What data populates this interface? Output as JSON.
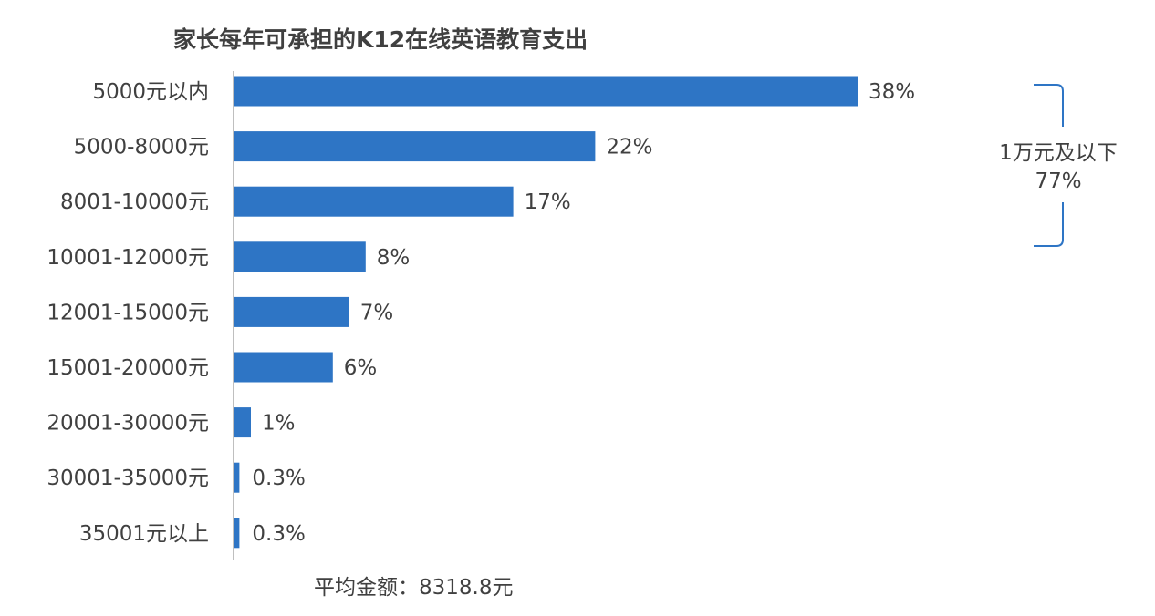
{
  "chart_data": {
    "type": "bar",
    "orientation": "horizontal",
    "title": "家长每年可承担的K12在线英语教育支出",
    "categories": [
      "5000元以内",
      "5000-8000元",
      "8001-10000元",
      "10001-12000元",
      "12001-15000元",
      "15001-20000元",
      "20001-30000元",
      "30001-35000元",
      "35001元以上"
    ],
    "values": [
      38,
      22,
      17,
      8,
      7,
      6,
      1,
      0.3,
      0.3
    ],
    "value_labels": [
      "38%",
      "22%",
      "17%",
      "8%",
      "7%",
      "6%",
      "1%",
      "0.3%",
      "0.3%"
    ],
    "unit": "%",
    "xlim": [
      0,
      40
    ],
    "grid": false,
    "bar_color": "#2E75C5",
    "annotations": {
      "bracket_line1": "1万元及以下",
      "bracket_line2": "77%",
      "bracket_color": "#2E75C5",
      "note": "平均金额：8318.8元"
    }
  }
}
